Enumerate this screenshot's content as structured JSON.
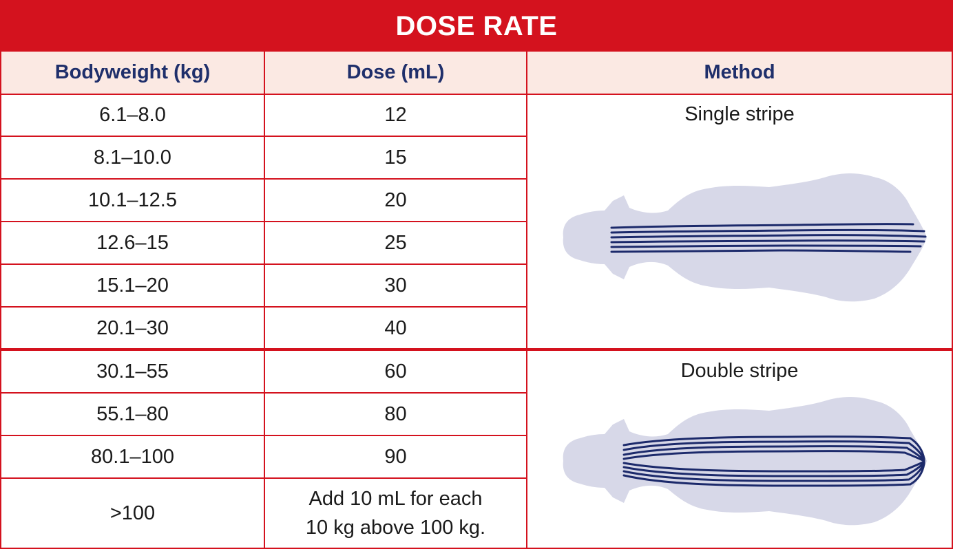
{
  "title": "DOSE RATE",
  "headers": {
    "bodyweight": "Bodyweight (kg)",
    "dose": "Dose (mL)",
    "method": "Method"
  },
  "rows": [
    {
      "weight": "6.1–8.0",
      "dose": "12"
    },
    {
      "weight": "8.1–10.0",
      "dose": "15"
    },
    {
      "weight": "10.1–12.5",
      "dose": "20"
    },
    {
      "weight": "12.6–15",
      "dose": "25"
    },
    {
      "weight": "15.1–20",
      "dose": "30"
    },
    {
      "weight": "20.1–30",
      "dose": "40"
    },
    {
      "weight": "30.1–55",
      "dose": "60"
    },
    {
      "weight": "55.1–80",
      "dose": "80"
    },
    {
      "weight": "80.1–100",
      "dose": "90"
    },
    {
      "weight": ">100",
      "dose_line1": "Add 10 mL for each",
      "dose_line2": "10 kg above 100 kg."
    }
  ],
  "methods": {
    "single": "Single stripe",
    "double": "Double stripe"
  },
  "colors": {
    "brand_red": "#d4121e",
    "header_bg": "#fbe9e3",
    "header_text": "#1f2f6b",
    "dog_fill": "#d7d8e8",
    "stripe": "#1c2a6b"
  },
  "icons": {
    "single": "dog-single-stripe-icon",
    "double": "dog-double-stripe-icon"
  }
}
